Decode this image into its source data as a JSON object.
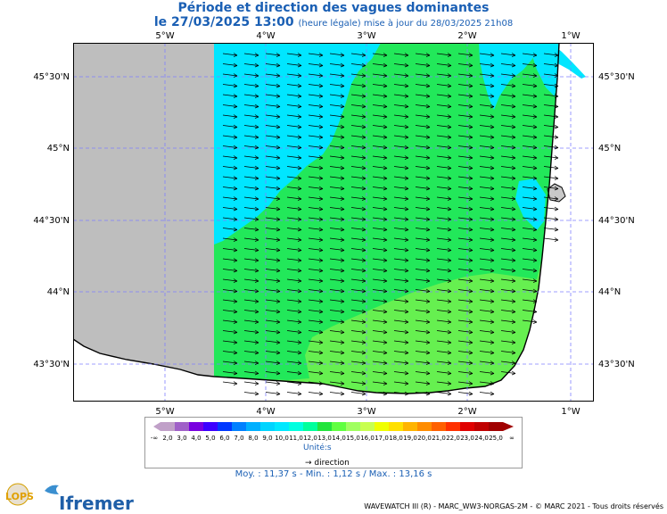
{
  "header": {
    "title": "Période et direction des vagues dominantes",
    "date_line": "le 27/03/2025 13:00",
    "update_line": "(heure légale) mise à jour du 28/03/2025 21h08"
  },
  "axes": {
    "longitude_labels": [
      "5°W",
      "4°W",
      "3°W",
      "2°W",
      "1°W"
    ],
    "latitude_labels": [
      "45°30'N",
      "45°N",
      "44°30'N",
      "44°N",
      "43°30'N"
    ]
  },
  "legend": {
    "min_symbol": "-∞",
    "max_symbol": "∞",
    "ticks": [
      "2,0",
      "3,0",
      "4,0",
      "5,0",
      "6,0",
      "7,0",
      "8,0",
      "9,0",
      "10,0",
      "11,0",
      "12,0",
      "13,0",
      "14,0",
      "15,0",
      "16,0",
      "17,0",
      "18,0",
      "19,0",
      "20,0",
      "21,0",
      "22,0",
      "23,0",
      "24,0",
      "25,0"
    ],
    "colors": [
      "#c0a0c8",
      "#a060c8",
      "#7800e0",
      "#3c00ff",
      "#0038ff",
      "#0080ff",
      "#00b0ff",
      "#00d4ff",
      "#00e8ff",
      "#00ffe0",
      "#00ff9c",
      "#22e43c",
      "#60ff40",
      "#a0ff60",
      "#c8ff50",
      "#f0ff00",
      "#ffe000",
      "#ffb400",
      "#ff8c00",
      "#ff6000",
      "#ff3000",
      "#e00000",
      "#c00000",
      "#a00000"
    ],
    "unit": "Unité:s",
    "direction_label": "direction"
  },
  "stats": {
    "text": "Moy. : 11,37 s   -   Min. : 1,12 s / Max. : 13,16 s"
  },
  "footer": "WAVEWATCH III (R) - MARC_WW3-NORGAS-2M - © MARC 2021 - Tous droits réservés",
  "logos": {
    "lops": "LOPS",
    "ifremer": "Ifremer"
  },
  "map_colors": {
    "land_no_data": "#bebebe",
    "sea_11s": "#00e6ff",
    "sea_12s": "#22e85a",
    "sea_13s": "#66f050"
  }
}
